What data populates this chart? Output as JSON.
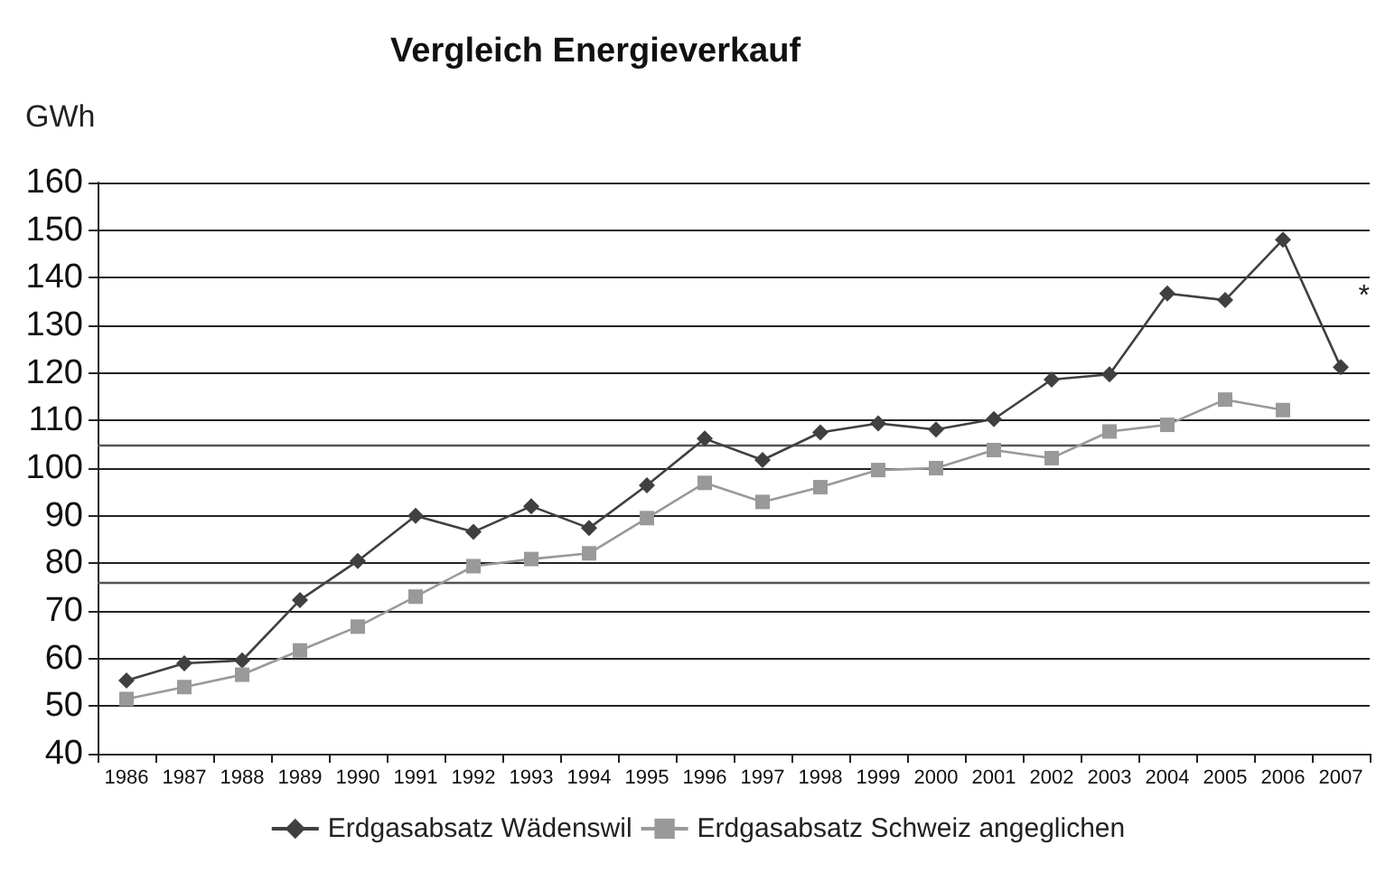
{
  "chart_data": {
    "type": "line",
    "title": "Vergleich Energieverkauf",
    "ylabel": "GWh",
    "categories": [
      "1986",
      "1987",
      "1988",
      "1989",
      "1990",
      "1991",
      "1992",
      "1993",
      "1994",
      "1995",
      "1996",
      "1997",
      "1998",
      "1999",
      "2000",
      "2001",
      "2002",
      "2003",
      "2004",
      "2005",
      "2006",
      "2007"
    ],
    "series": [
      {
        "name": "Erdgasabsatz Wädenswil",
        "color": "#404040",
        "marker": "diamond",
        "values": [
          55.4,
          59.0,
          59.6,
          72.3,
          80.5,
          90.0,
          86.6,
          92.0,
          87.4,
          96.4,
          106.2,
          101.7,
          107.5,
          109.4,
          108.1,
          110.3,
          118.6,
          119.7,
          136.7,
          135.3,
          148.0,
          121.2
        ]
      },
      {
        "name": "Erdgasabsatz Schweiz angeglichen",
        "color": "#999999",
        "marker": "square",
        "values": [
          51.5,
          54.0,
          56.6,
          61.7,
          66.7,
          73.0,
          79.4,
          80.9,
          82.1,
          89.5,
          96.9,
          92.9,
          96.0,
          99.6,
          100.0,
          103.8,
          102.1,
          107.7,
          109.1,
          114.4,
          112.2,
          null
        ]
      }
    ],
    "ylim": [
      40,
      160
    ],
    "yticks": [
      40,
      50,
      60,
      70,
      80,
      90,
      100,
      110,
      120,
      130,
      140,
      150,
      160
    ],
    "grid": "y",
    "legend": "bottom",
    "ref_lines": [
      {
        "axis": "y",
        "value": 105,
        "label": null,
        "color": "#555555"
      },
      {
        "axis": "y",
        "value": 76,
        "label": null,
        "color": "#555555"
      }
    ],
    "annotations": [
      "*"
    ]
  }
}
